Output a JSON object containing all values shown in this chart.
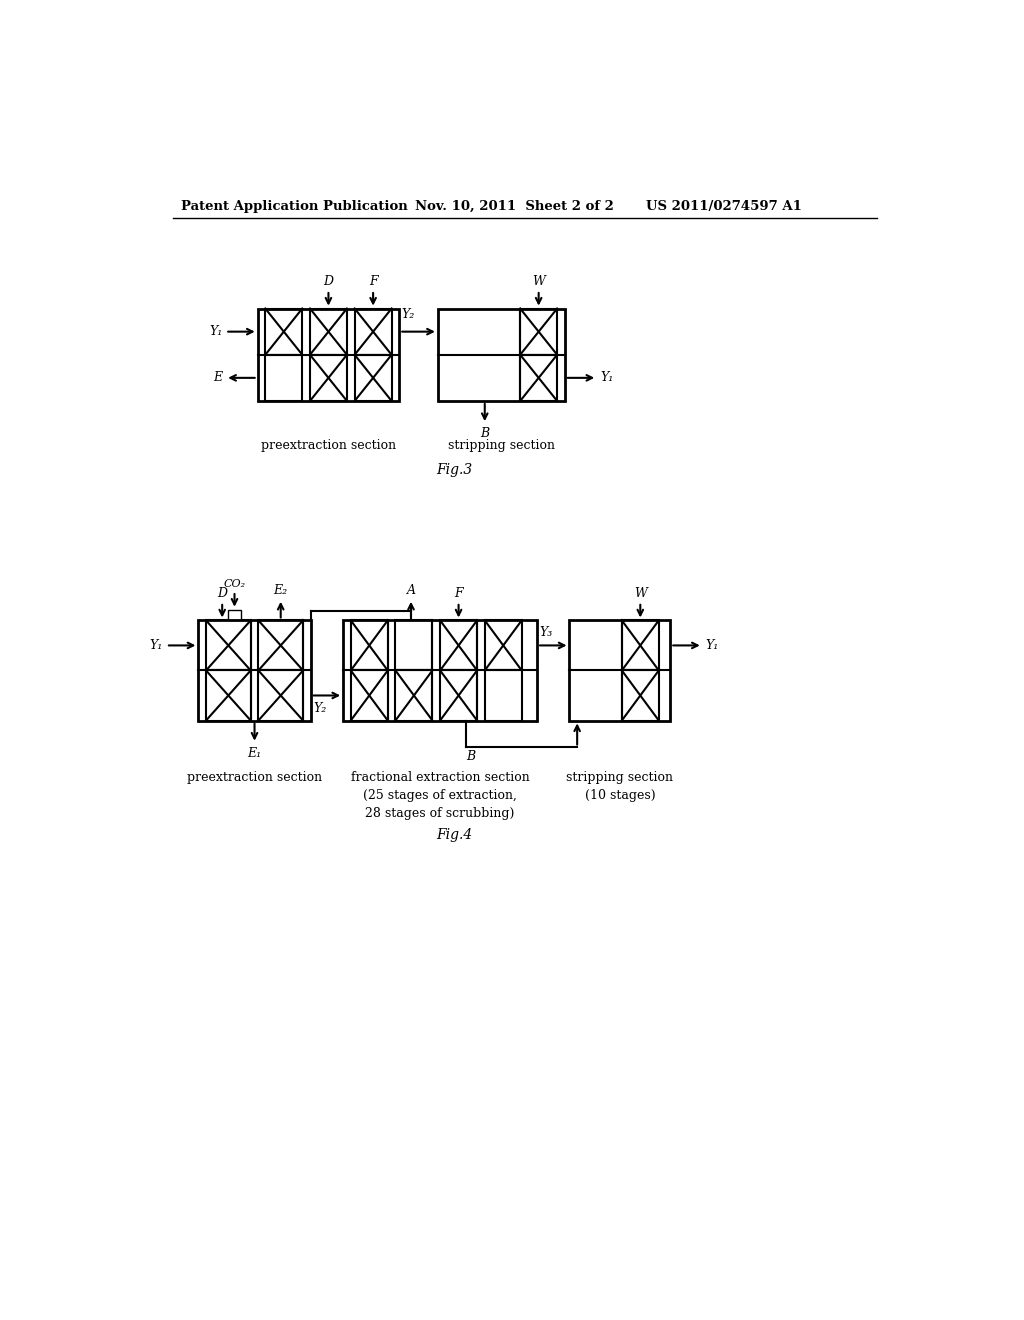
{
  "bg_color": "#ffffff",
  "header_left": "Patent Application Publication",
  "header_mid": "Nov. 10, 2011  Sheet 2 of 2",
  "header_right": "US 2011/0274597 A1",
  "fig3_label": "Fig.3",
  "fig4_label": "Fig.4",
  "fig3_preextraction_label": "preextraction section",
  "fig3_stripping_label": "stripping section",
  "fig4_preextraction_label": "preextraction section",
  "fig4_fractional_label": "fractional extraction section\n(25 stages of extraction,\n28 stages of scrubbing)",
  "fig4_stripping_label": "stripping section\n(10 stages)"
}
